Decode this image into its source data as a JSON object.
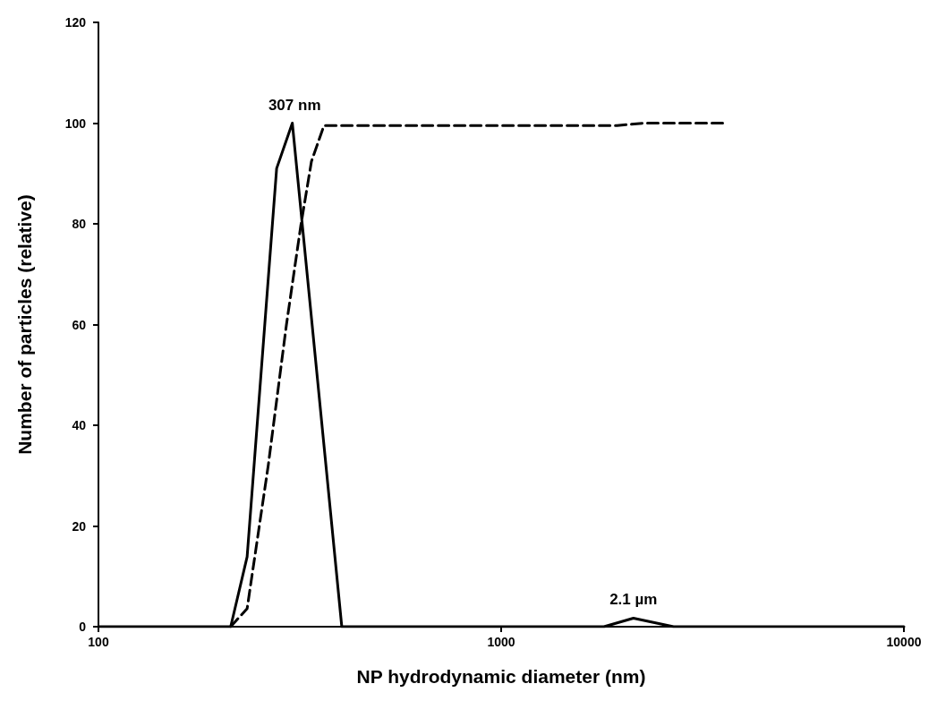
{
  "chart_data": {
    "type": "line",
    "xlabel": "NP hydrodynamic diameter (nm)",
    "ylabel": "Number of particles (relative)",
    "log": "x",
    "xlim": [
      100,
      10000
    ],
    "xticks": [
      100,
      1000,
      10000
    ],
    "ylim": [
      0,
      120
    ],
    "yticks": [
      0,
      20,
      40,
      60,
      80,
      100,
      120
    ],
    "grid": false,
    "marker": "none",
    "annotations": [
      {
        "text": "307 nm",
        "x": 307,
        "y": 100
      },
      {
        "text": "2.1 µm",
        "x": 2130,
        "y": 1.7
      }
    ],
    "series": [
      {
        "color": "#000000",
        "line_style": "solid",
        "x": [
          100,
          213,
          234,
          277,
          303,
          402,
          1800,
          2130,
          2680,
          10000
        ],
        "values": [
          0,
          0,
          13.9,
          91,
          100,
          0,
          0,
          1.7,
          0,
          0
        ]
      },
      {
        "color": "#000000",
        "line_style": "dashed",
        "x": [
          213,
          234,
          264,
          293,
          318,
          338,
          363,
          1940,
          2260,
          3650
        ],
        "values": [
          0,
          3.6,
          32,
          60,
          79.6,
          92.4,
          99.5,
          99.5,
          100,
          100
        ]
      }
    ]
  }
}
